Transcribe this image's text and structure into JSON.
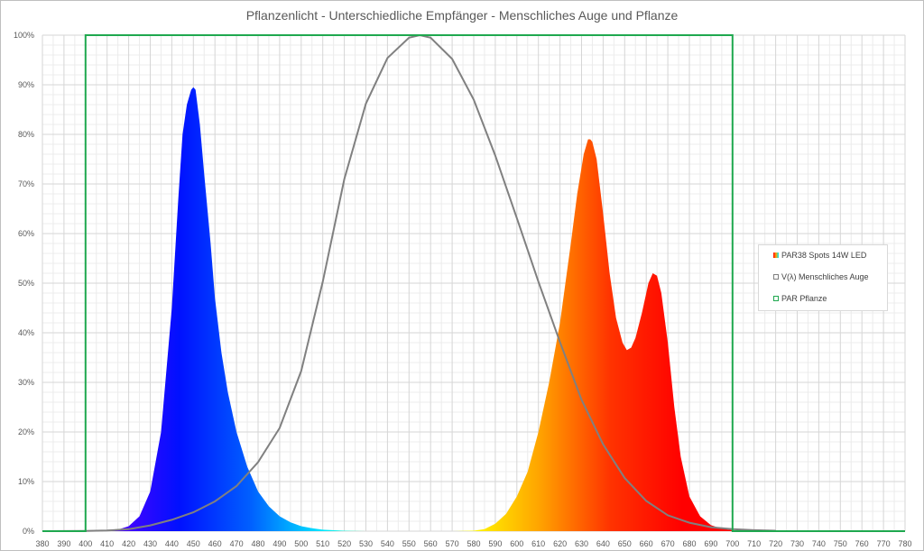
{
  "chart_data": {
    "type": "area",
    "title": "Pflanzenlicht - Unterschiedliche Empfänger - Menschliches Auge und Pflanze",
    "xlabel": "",
    "ylabel": "",
    "xlim": [
      380,
      780
    ],
    "ylim": [
      0,
      100
    ],
    "x_ticks": [
      "380",
      "390",
      "400",
      "410",
      "420",
      "430",
      "440",
      "450",
      "460",
      "470",
      "480",
      "490",
      "500",
      "510",
      "520",
      "530",
      "540",
      "550",
      "560",
      "570",
      "580",
      "590",
      "600",
      "610",
      "620",
      "630",
      "640",
      "650",
      "660",
      "670",
      "680",
      "690",
      "700",
      "710",
      "720",
      "730",
      "740",
      "750",
      "760",
      "770",
      "780"
    ],
    "y_ticks": [
      "0%",
      "10%",
      "20%",
      "30%",
      "40%",
      "50%",
      "60%",
      "70%",
      "80%",
      "90%",
      "100%"
    ],
    "grid": true,
    "legend_position": "right",
    "series": [
      {
        "name": "PAR38 Spots 14W LED",
        "kind": "filled-spectrum",
        "x": [
          410,
          415,
          420,
          425,
          430,
          435,
          440,
          443,
          445,
          447,
          449,
          450,
          451,
          453,
          455,
          458,
          460,
          463,
          466,
          470,
          475,
          480,
          485,
          490,
          495,
          500,
          505,
          510,
          520,
          530,
          540,
          550,
          560,
          570,
          580,
          585,
          590,
          595,
          600,
          605,
          610,
          615,
          620,
          625,
          628,
          631,
          633,
          634,
          635,
          637,
          640,
          643,
          646,
          649,
          651,
          653,
          655,
          658,
          661,
          663,
          665,
          667,
          670,
          673,
          676,
          680,
          685,
          690,
          695,
          700,
          705,
          710
        ],
        "values": [
          0,
          0.3,
          1.0,
          3.0,
          8.0,
          20,
          45,
          67,
          80,
          86,
          89,
          89.5,
          89,
          82,
          72,
          58,
          47,
          36,
          28,
          20,
          13,
          8,
          5,
          3,
          1.8,
          1.0,
          0.6,
          0.3,
          0.1,
          0,
          0,
          0,
          0,
          0,
          0.1,
          0.4,
          1.5,
          3.5,
          7,
          12,
          20,
          30,
          42,
          58,
          68,
          76,
          79,
          79,
          78.5,
          75,
          64,
          52,
          43,
          38,
          36.5,
          37,
          39,
          44,
          50,
          52,
          51.5,
          48,
          38,
          25,
          15,
          7,
          3,
          1.2,
          0.5,
          0.2,
          0.1,
          0
        ],
        "gradient": [
          "#5a00ff",
          "#0010ff",
          "#0060ff",
          "#00e8ff",
          "#7fff7f",
          "#ffff00",
          "#ffa500",
          "#ff3300",
          "#ff0000",
          "#ff0000"
        ]
      },
      {
        "name": "V(λ) Menschliches Auge",
        "kind": "line",
        "color": "#808080",
        "x": [
          380,
          390,
          400,
          410,
          420,
          430,
          440,
          450,
          460,
          470,
          480,
          490,
          500,
          510,
          520,
          530,
          540,
          550,
          555,
          560,
          570,
          580,
          590,
          600,
          610,
          620,
          630,
          640,
          650,
          660,
          670,
          680,
          690,
          700,
          710,
          720
        ],
        "values": [
          0,
          0.012,
          0.04,
          0.12,
          0.4,
          1.16,
          2.3,
          3.8,
          6.0,
          9.1,
          13.9,
          20.8,
          32.3,
          50.3,
          71.0,
          86.2,
          95.4,
          99.5,
          100,
          99.5,
          95.2,
          87.0,
          75.7,
          63.1,
          50.3,
          38.1,
          26.5,
          17.5,
          10.7,
          6.1,
          3.2,
          1.7,
          0.8,
          0.4,
          0.2,
          0.1
        ]
      },
      {
        "name": "PAR Pflanze",
        "kind": "box",
        "color": "#1fa84f",
        "x_from": 400,
        "x_to": 700,
        "value": 100
      }
    ]
  }
}
